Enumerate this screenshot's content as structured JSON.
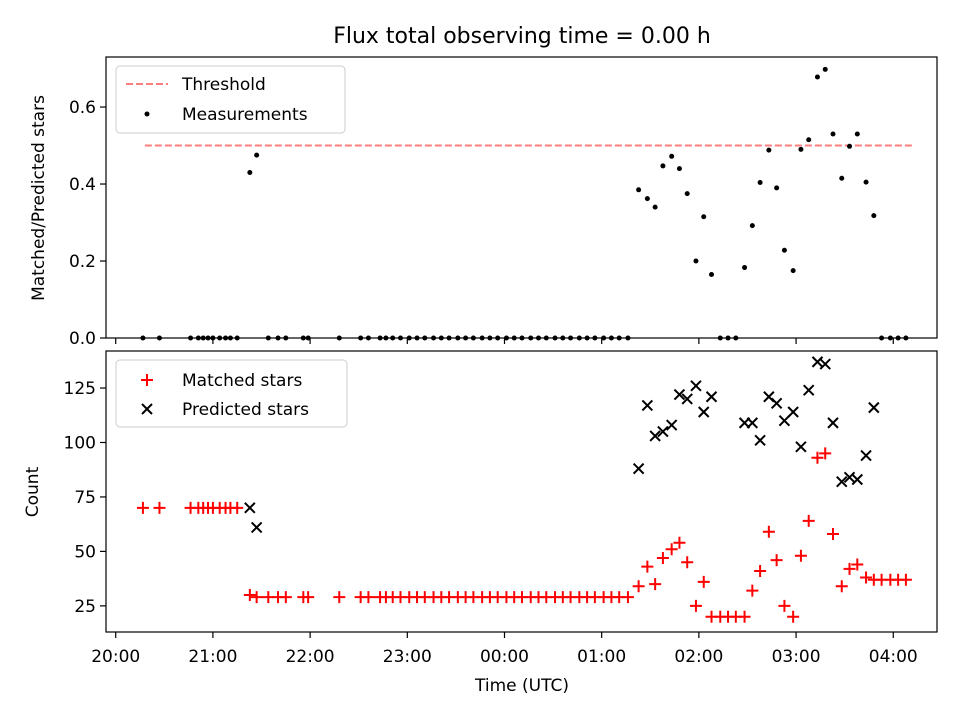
{
  "title": "Flux total observing time = 0.00 h",
  "colors": {
    "threshold": "#ff7f7f",
    "measurement": "#000000",
    "matched": "#ff0000",
    "predicted": "#000000"
  },
  "chart_data": [
    {
      "type": "scatter",
      "ylabel": "Matched/Predicted stars",
      "ylim": [
        0,
        0.73
      ],
      "yticks": [
        "0.0",
        "0.2",
        "0.4",
        "0.6"
      ],
      "yticks_val": [
        0,
        0.2,
        0.4,
        0.6
      ],
      "threshold": {
        "value": 0.5,
        "x_start": 20.3,
        "x_end": 4.2
      },
      "legend": {
        "threshold": "Threshold",
        "measurements": "Measurements"
      },
      "measurements": [
        [
          20.28,
          0
        ],
        [
          20.45,
          0
        ],
        [
          20.77,
          0
        ],
        [
          20.85,
          0
        ],
        [
          20.9,
          0
        ],
        [
          20.95,
          0
        ],
        [
          21.0,
          0
        ],
        [
          21.07,
          0
        ],
        [
          21.13,
          0
        ],
        [
          21.18,
          0
        ],
        [
          21.25,
          0
        ],
        [
          21.38,
          0.43
        ],
        [
          21.45,
          0.475
        ],
        [
          21.57,
          0
        ],
        [
          21.67,
          0
        ],
        [
          21.75,
          0
        ],
        [
          21.93,
          0
        ],
        [
          21.98,
          0
        ],
        [
          22.3,
          0
        ],
        [
          22.52,
          0
        ],
        [
          22.6,
          0
        ],
        [
          22.72,
          0
        ],
        [
          22.78,
          0
        ],
        [
          22.85,
          0
        ],
        [
          22.93,
          0
        ],
        [
          23.02,
          0
        ],
        [
          23.1,
          0
        ],
        [
          23.18,
          0
        ],
        [
          23.27,
          0
        ],
        [
          23.35,
          0
        ],
        [
          23.43,
          0
        ],
        [
          23.52,
          0
        ],
        [
          23.6,
          0
        ],
        [
          23.68,
          0
        ],
        [
          23.77,
          0
        ],
        [
          23.85,
          0
        ],
        [
          23.93,
          0
        ],
        [
          24.02,
          0
        ],
        [
          24.1,
          0
        ],
        [
          24.18,
          0
        ],
        [
          24.27,
          0
        ],
        [
          24.35,
          0
        ],
        [
          24.43,
          0
        ],
        [
          24.52,
          0
        ],
        [
          24.6,
          0
        ],
        [
          24.68,
          0
        ],
        [
          24.77,
          0
        ],
        [
          24.85,
          0
        ],
        [
          24.93,
          0
        ],
        [
          25.02,
          0
        ],
        [
          25.1,
          0
        ],
        [
          25.18,
          0
        ],
        [
          25.27,
          0
        ],
        [
          25.38,
          0.385
        ],
        [
          25.47,
          0.362
        ],
        [
          25.55,
          0.34
        ],
        [
          25.63,
          0.447
        ],
        [
          25.72,
          0.472
        ],
        [
          25.8,
          0.44
        ],
        [
          25.88,
          0.375
        ],
        [
          25.97,
          0.2
        ],
        [
          26.05,
          0.315
        ],
        [
          26.13,
          0.165
        ],
        [
          26.22,
          0
        ],
        [
          26.3,
          0
        ],
        [
          26.38,
          0
        ],
        [
          26.47,
          0.183
        ],
        [
          26.55,
          0.292
        ],
        [
          26.63,
          0.404
        ],
        [
          26.72,
          0.488
        ],
        [
          26.8,
          0.39
        ],
        [
          26.88,
          0.228
        ],
        [
          26.97,
          0.175
        ],
        [
          27.05,
          0.49
        ],
        [
          27.13,
          0.515
        ],
        [
          27.22,
          0.678
        ],
        [
          27.3,
          0.698
        ],
        [
          27.38,
          0.53
        ],
        [
          27.47,
          0.415
        ],
        [
          27.55,
          0.498
        ],
        [
          27.63,
          0.53
        ],
        [
          27.72,
          0.405
        ],
        [
          27.8,
          0.318
        ],
        [
          27.88,
          0
        ],
        [
          27.97,
          0
        ],
        [
          28.05,
          0
        ],
        [
          28.13,
          0
        ]
      ]
    },
    {
      "type": "scatter",
      "xlabel": "Time (UTC)",
      "ylabel": "Count",
      "ylim": [
        13,
        142
      ],
      "yticks": [
        "25",
        "50",
        "75",
        "100",
        "125"
      ],
      "yticks_val": [
        25,
        50,
        75,
        100,
        125
      ],
      "xlim": [
        19.9,
        28.45
      ],
      "xticks": [
        "20:00",
        "21:00",
        "22:00",
        "23:00",
        "00:00",
        "01:00",
        "02:00",
        "03:00",
        "04:00"
      ],
      "xticks_val": [
        20,
        21,
        22,
        23,
        24,
        25,
        26,
        27,
        28
      ],
      "legend": {
        "matched": "Matched stars",
        "predicted": "Predicted stars"
      },
      "matched": [
        [
          20.28,
          70
        ],
        [
          20.45,
          70
        ],
        [
          20.77,
          70
        ],
        [
          20.85,
          70
        ],
        [
          20.9,
          70
        ],
        [
          20.95,
          70
        ],
        [
          21.0,
          70
        ],
        [
          21.07,
          70
        ],
        [
          21.13,
          70
        ],
        [
          21.18,
          70
        ],
        [
          21.25,
          70
        ],
        [
          21.38,
          30
        ],
        [
          21.45,
          29
        ],
        [
          21.57,
          29
        ],
        [
          21.67,
          29
        ],
        [
          21.75,
          29
        ],
        [
          21.93,
          29
        ],
        [
          21.98,
          29
        ],
        [
          22.3,
          29
        ],
        [
          22.52,
          29
        ],
        [
          22.6,
          29
        ],
        [
          22.72,
          29
        ],
        [
          22.78,
          29
        ],
        [
          22.85,
          29
        ],
        [
          22.93,
          29
        ],
        [
          23.02,
          29
        ],
        [
          23.1,
          29
        ],
        [
          23.18,
          29
        ],
        [
          23.27,
          29
        ],
        [
          23.35,
          29
        ],
        [
          23.43,
          29
        ],
        [
          23.52,
          29
        ],
        [
          23.6,
          29
        ],
        [
          23.68,
          29
        ],
        [
          23.77,
          29
        ],
        [
          23.85,
          29
        ],
        [
          23.93,
          29
        ],
        [
          24.02,
          29
        ],
        [
          24.1,
          29
        ],
        [
          24.18,
          29
        ],
        [
          24.27,
          29
        ],
        [
          24.35,
          29
        ],
        [
          24.43,
          29
        ],
        [
          24.52,
          29
        ],
        [
          24.6,
          29
        ],
        [
          24.68,
          29
        ],
        [
          24.77,
          29
        ],
        [
          24.85,
          29
        ],
        [
          24.93,
          29
        ],
        [
          25.02,
          29
        ],
        [
          25.1,
          29
        ],
        [
          25.18,
          29
        ],
        [
          25.27,
          29
        ],
        [
          25.38,
          34
        ],
        [
          25.47,
          43
        ],
        [
          25.55,
          35
        ],
        [
          25.63,
          47
        ],
        [
          25.72,
          51
        ],
        [
          25.8,
          54
        ],
        [
          25.88,
          45
        ],
        [
          25.97,
          25
        ],
        [
          26.05,
          36
        ],
        [
          26.13,
          20
        ],
        [
          26.22,
          20
        ],
        [
          26.3,
          20
        ],
        [
          26.38,
          20
        ],
        [
          26.47,
          20
        ],
        [
          26.55,
          32
        ],
        [
          26.63,
          41
        ],
        [
          26.72,
          59
        ],
        [
          26.8,
          46
        ],
        [
          26.88,
          25
        ],
        [
          26.97,
          20
        ],
        [
          27.05,
          48
        ],
        [
          27.13,
          64
        ],
        [
          27.22,
          93
        ],
        [
          27.3,
          95
        ],
        [
          27.38,
          58
        ],
        [
          27.47,
          34
        ],
        [
          27.55,
          42
        ],
        [
          27.63,
          44
        ],
        [
          27.72,
          38
        ],
        [
          27.8,
          37
        ],
        [
          27.88,
          37
        ],
        [
          27.97,
          37
        ],
        [
          28.05,
          37
        ],
        [
          28.13,
          37
        ]
      ],
      "predicted": [
        [
          21.38,
          70
        ],
        [
          21.45,
          61
        ],
        [
          25.38,
          88
        ],
        [
          25.47,
          117
        ],
        [
          25.55,
          103
        ],
        [
          25.63,
          105
        ],
        [
          25.72,
          108
        ],
        [
          25.8,
          122
        ],
        [
          25.88,
          120
        ],
        [
          25.97,
          126
        ],
        [
          26.05,
          114
        ],
        [
          26.13,
          121
        ],
        [
          26.47,
          109
        ],
        [
          26.55,
          109
        ],
        [
          26.63,
          101
        ],
        [
          26.72,
          121
        ],
        [
          26.8,
          118
        ],
        [
          26.88,
          110
        ],
        [
          26.97,
          114
        ],
        [
          27.05,
          98
        ],
        [
          27.13,
          124
        ],
        [
          27.22,
          137
        ],
        [
          27.3,
          136
        ],
        [
          27.38,
          109
        ],
        [
          27.47,
          82
        ],
        [
          27.55,
          84
        ],
        [
          27.63,
          83
        ],
        [
          27.72,
          94
        ],
        [
          27.8,
          116
        ]
      ]
    }
  ]
}
